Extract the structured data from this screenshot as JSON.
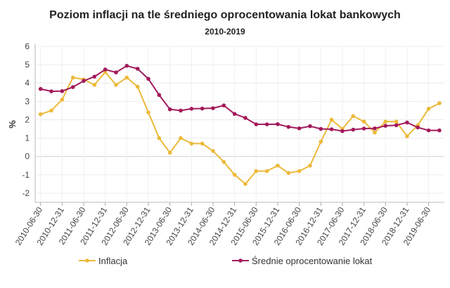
{
  "chart_data": {
    "type": "line",
    "title": "Poziom inflacji na tle średniego oprocentowania lokat bankowych",
    "subtitle": "2010-2019",
    "xlabel": "",
    "ylabel": "%",
    "ylim": [
      -2.5,
      6
    ],
    "yticks": [
      "-2",
      "-1",
      "0",
      "1",
      "2",
      "3",
      "4",
      "5",
      "6"
    ],
    "grid": true,
    "legend": "bottom",
    "x": [
      "2010-06-30",
      "2010-09-30",
      "2010-12-31",
      "2011-03-31",
      "2011-06-30",
      "2011-09-30",
      "2011-12-31",
      "2012-03-31",
      "2012-06-30",
      "2012-09-30",
      "2012-12-31",
      "2013-03-31",
      "2013-06-30",
      "2013-09-30",
      "2013-12-31",
      "2014-03-31",
      "2014-06-30",
      "2014-09-30",
      "2014-12-31",
      "2015-03-31",
      "2015-06-30",
      "2015-09-30",
      "2015-12-31",
      "2016-03-31",
      "2016-06-30",
      "2016-09-30",
      "2016-12-31",
      "2017-03-31",
      "2017-06-30",
      "2017-09-30",
      "2017-12-31",
      "2018-03-31",
      "2018-06-30",
      "2018-09-30",
      "2018-12-31",
      "2019-03-31",
      "2019-06-30",
      "2019-09-30"
    ],
    "xticks": [
      "2010-06-30",
      "2010-12-31",
      "2011-06-30",
      "2011-12-31",
      "2012-06-30",
      "2012-12-31",
      "2013-06-30",
      "2013-12-31",
      "2014-06-30",
      "2014-12-31",
      "2015-06-30",
      "2015-12-31",
      "2016-06-30",
      "2016-12-31",
      "2017-06-30",
      "2017-12-31",
      "2018-06-30",
      "2018-12-31",
      "2019-06-30"
    ],
    "series": [
      {
        "name": "Inflacja",
        "color": "#ecb93a",
        "values": [
          2.3,
          2.5,
          3.1,
          4.3,
          4.2,
          3.9,
          4.6,
          3.9,
          4.3,
          3.8,
          2.4,
          1.0,
          0.2,
          1.0,
          0.7,
          0.7,
          0.3,
          -0.3,
          -1.0,
          -1.5,
          -0.8,
          -0.8,
          -0.5,
          -0.9,
          -0.8,
          -0.5,
          0.8,
          2.0,
          1.5,
          2.2,
          1.9,
          1.3,
          1.9,
          1.9,
          1.1,
          1.7,
          2.6,
          2.9
        ]
      },
      {
        "name": "Średnie oprocentowanie lokat",
        "color": "#a3195b",
        "values": [
          3.68,
          3.55,
          3.56,
          3.78,
          4.12,
          4.35,
          4.74,
          4.58,
          4.94,
          4.78,
          4.23,
          3.35,
          2.57,
          2.5,
          2.6,
          2.61,
          2.63,
          2.78,
          2.32,
          2.1,
          1.75,
          1.75,
          1.76,
          1.61,
          1.53,
          1.65,
          1.5,
          1.48,
          1.38,
          1.46,
          1.52,
          1.53,
          1.67,
          1.7,
          1.85,
          1.58,
          1.42,
          1.42
        ]
      }
    ]
  }
}
